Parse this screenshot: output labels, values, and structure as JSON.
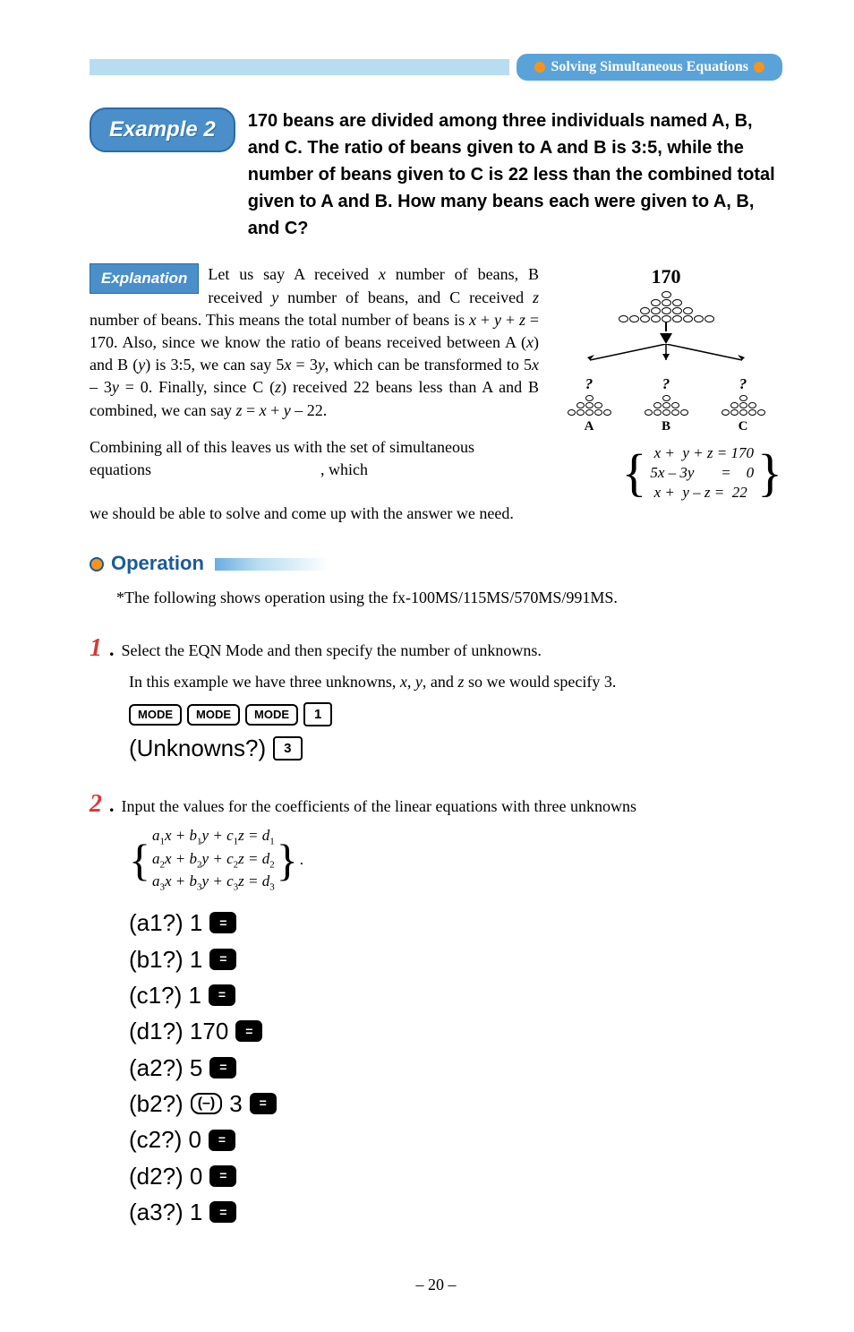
{
  "header": {
    "title": "Solving Simultaneous Equations"
  },
  "example": {
    "badge": "Example 2",
    "problem": "170 beans are divided among three individuals named A, B, and C. The ratio of beans given to A and B is 3:5, while the number of beans given to C is 22 less than the combined total given to A and B. How many beans each were given to A, B, and C?"
  },
  "explanation": {
    "badge": "Explanation",
    "para1_a": "Let us say A received ",
    "para1_b": " number of beans, B received ",
    "para1_c": " number of beans, and C received ",
    "para1_d": " number of beans. This means the total number of beans is ",
    "para1_e": " = 170. Also, since we know the ratio of beans received between A (",
    "para1_f": ") and B (",
    "para1_g": ") is 3:5, we can say 5",
    "para1_h": " = 3",
    "para1_i": ", which can be transformed to 5",
    "para1_j": " – 3",
    "para1_k": " = 0. Finally, since C (",
    "para1_l": ") received 22 beans less than A and B combined, we can say ",
    "para1_m": " – 22.",
    "combining": "Combining all of this leaves us with the set of simultaneous equations ",
    "which": ", which",
    "solve": "we should be able to solve and come up with the answer we need."
  },
  "diagram": {
    "total": "170",
    "labelA": "A",
    "labelB": "B",
    "labelC": "C"
  },
  "equations": {
    "row1": "x +  y + z = 170",
    "row2": "5x – 3y       =    0",
    "row3": "x +  y – z =   22"
  },
  "operation": {
    "title": "Operation",
    "note": "*The following shows operation using the fx-100MS/115MS/570MS/991MS."
  },
  "step1": {
    "num": "1",
    "text": "Select the EQN Mode and then specify the number of unknowns.",
    "sub": "In this example we have three unknowns, x, y, and z so we would specify 3.",
    "keys": [
      "MODE",
      "MODE",
      "MODE",
      "1"
    ],
    "prompt": "(Unknowns?)",
    "answer": "3"
  },
  "step2": {
    "num": "2",
    "text": "Input the values for the coefficients of the linear equations with three unknowns",
    "coef1": "a₁x + b₁y + c₁z = d₁",
    "coef2": "a₂x + b₂y + c₂z = d₂",
    "coef3": "a₃x + b₃y + c₃z = d₃",
    "inputs": [
      {
        "label": "(a1?) 1",
        "neg": false
      },
      {
        "label": "(b1?) 1",
        "neg": false
      },
      {
        "label": "(c1?) 1",
        "neg": false
      },
      {
        "label": "(d1?) 170",
        "neg": false
      },
      {
        "label": "(a2?) 5",
        "neg": false
      },
      {
        "label": "(b2?) ",
        "neg": true,
        "after": " 3"
      },
      {
        "label": "(c2?) 0",
        "neg": false
      },
      {
        "label": "(d2?) 0",
        "neg": false
      },
      {
        "label": "(a3?) 1",
        "neg": false
      }
    ]
  },
  "pageNumber": "– 20 –",
  "colors": {
    "headerBg": "#b8ddf0",
    "pillBg": "#5aa3d8",
    "orange": "#f7941e",
    "badgeBg": "#4a8fc9",
    "stepRed": "#d73838",
    "opBlue": "#1a5a9a"
  }
}
